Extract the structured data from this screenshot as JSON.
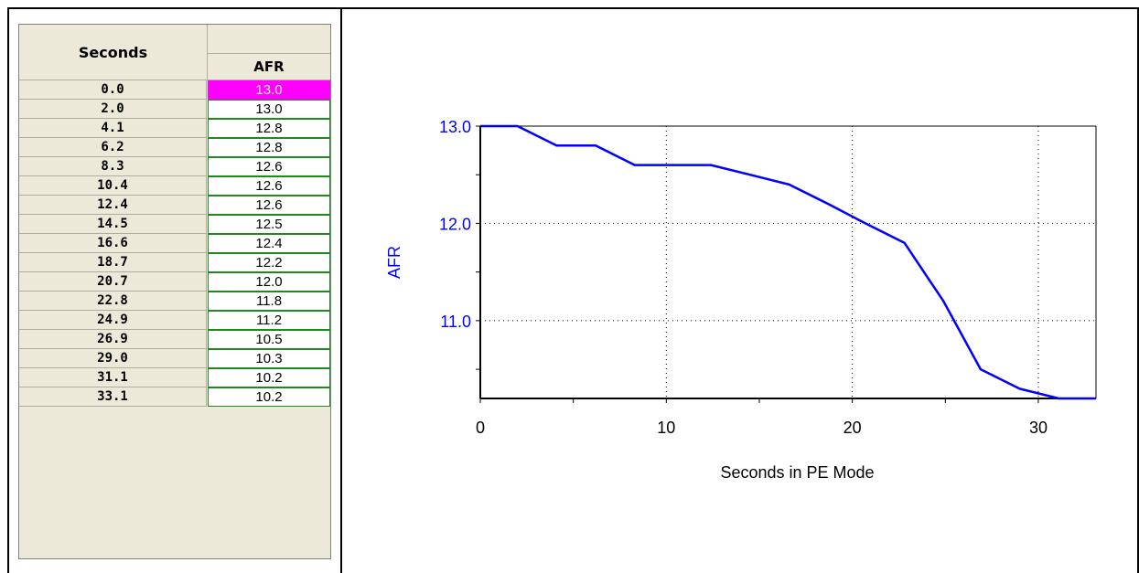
{
  "table": {
    "header_seconds": "Seconds",
    "header_afr": "AFR",
    "rows": [
      {
        "seconds": "0.0",
        "afr": "13.0",
        "selected": true
      },
      {
        "seconds": "2.0",
        "afr": "13.0"
      },
      {
        "seconds": "4.1",
        "afr": "12.8"
      },
      {
        "seconds": "6.2",
        "afr": "12.8"
      },
      {
        "seconds": "8.3",
        "afr": "12.6"
      },
      {
        "seconds": "10.4",
        "afr": "12.6"
      },
      {
        "seconds": "12.4",
        "afr": "12.6"
      },
      {
        "seconds": "14.5",
        "afr": "12.5"
      },
      {
        "seconds": "16.6",
        "afr": "12.4"
      },
      {
        "seconds": "18.7",
        "afr": "12.2"
      },
      {
        "seconds": "20.7",
        "afr": "12.0"
      },
      {
        "seconds": "22.8",
        "afr": "11.8"
      },
      {
        "seconds": "24.9",
        "afr": "11.2"
      },
      {
        "seconds": "26.9",
        "afr": "10.5"
      },
      {
        "seconds": "29.0",
        "afr": "10.3"
      },
      {
        "seconds": "31.1",
        "afr": "10.2"
      },
      {
        "seconds": "33.1",
        "afr": "10.2"
      }
    ],
    "selected_color": "#ff00ff"
  },
  "chart_data": {
    "type": "line",
    "xlabel": "Seconds in PE Mode",
    "ylabel": "AFR",
    "x": [
      0.0,
      2.0,
      4.1,
      6.2,
      8.3,
      10.4,
      12.4,
      14.5,
      16.6,
      18.7,
      20.7,
      22.8,
      24.9,
      26.9,
      29.0,
      31.1,
      33.1
    ],
    "series": [
      {
        "values": [
          13.0,
          13.0,
          12.8,
          12.8,
          12.6,
          12.6,
          12.6,
          12.5,
          12.4,
          12.2,
          12.0,
          11.8,
          11.2,
          10.5,
          10.3,
          10.2,
          10.2
        ]
      }
    ],
    "xlim": [
      0,
      33.1
    ],
    "ylim": [
      10.2,
      13.0
    ],
    "xticks": [
      "0",
      "10",
      "20",
      "30"
    ],
    "yticks": [
      "13.0",
      "12.0",
      "11.0"
    ],
    "grid": "dotted",
    "line_color": "#0000ff",
    "ylabel_color": "#0000ff"
  }
}
